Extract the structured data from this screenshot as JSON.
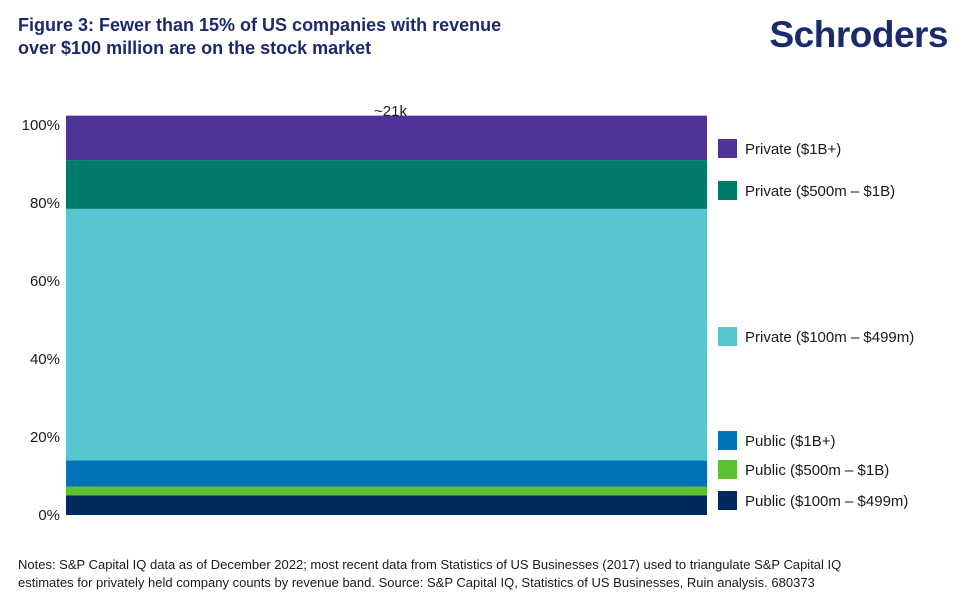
{
  "header": {
    "title_line1": "Figure 3: Fewer than 15% of US companies with revenue",
    "title_line2": "over $100 million are on the stock market",
    "logo_text": "Schroders"
  },
  "chart_data": {
    "type": "bar",
    "stacked": true,
    "orientation": "vertical",
    "categories": [
      "~21k"
    ],
    "ylim": [
      0,
      100
    ],
    "yticks": [
      0,
      20,
      40,
      60,
      80,
      100
    ],
    "ytick_labels": [
      "0%",
      "20%",
      "40%",
      "60%",
      "80%",
      "100%"
    ],
    "legend_position": "right",
    "grid": false,
    "series": [
      {
        "name": "Public ($100m – $499m)",
        "values": [
          5
        ],
        "color": "#002a5c"
      },
      {
        "name": "Public ($500m – $1B)",
        "values": [
          2.3
        ],
        "color": "#5cc02f"
      },
      {
        "name": "Public ($1B+)",
        "values": [
          6.7
        ],
        "color": "#0073b7"
      },
      {
        "name": "Private ($100m – $499m)",
        "values": [
          64.5
        ],
        "color": "#57c6d0"
      },
      {
        "name": "Private ($500m – $1B)",
        "values": [
          12.5
        ],
        "color": "#007a6b"
      },
      {
        "name": "Private ($1B+)",
        "values": [
          11.4
        ],
        "color": "#4f3397"
      }
    ]
  },
  "notes": {
    "line1": "Notes: S&P Capital IQ data as of December 2022; most recent data from Statistics of US Businesses (2017) used to triangulate S&P Capital IQ",
    "line2": "estimates for privately held company counts by revenue band. Source: S&P Capital IQ, Statistics of US Businesses, Ruin analysis. 680373"
  }
}
